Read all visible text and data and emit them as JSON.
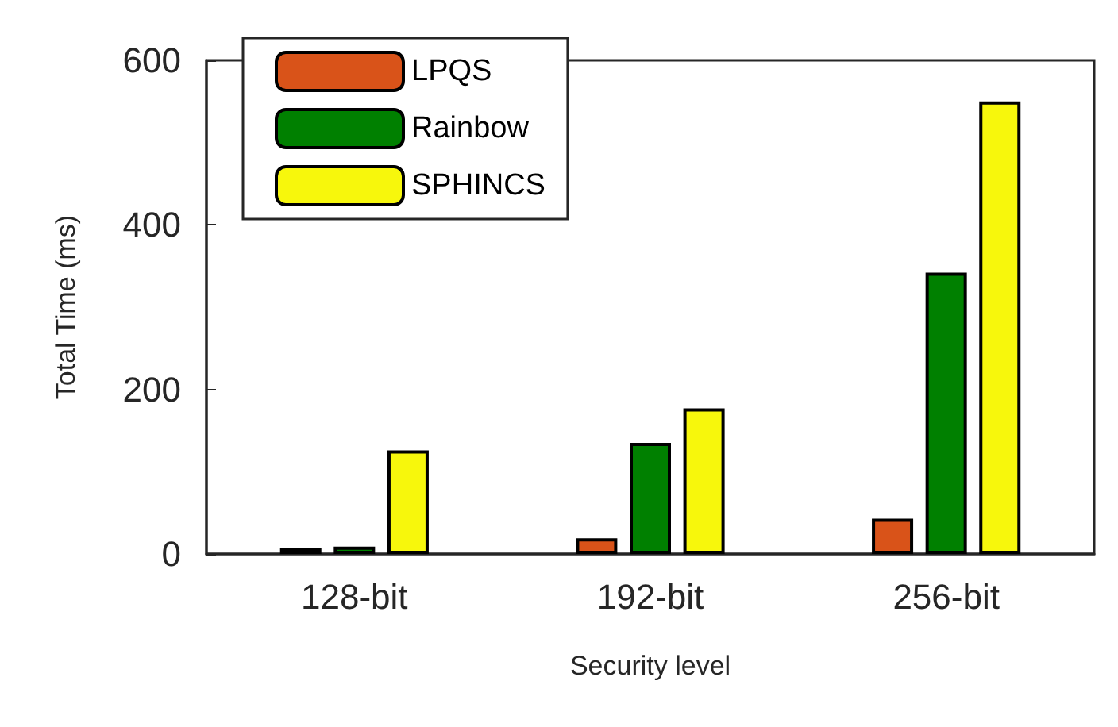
{
  "chart_data": {
    "type": "bar",
    "xlabel": "Security level",
    "ylabel": "Total Time (ms)",
    "categories": [
      "128-bit",
      "192-bit",
      "256-bit"
    ],
    "series": [
      {
        "name": "LPQS",
        "color": "#d95319",
        "values": [
          7,
          19,
          43
        ]
      },
      {
        "name": "Rainbow",
        "color": "#008000",
        "values": [
          9,
          135,
          342
        ]
      },
      {
        "name": "SPHINCS",
        "color": "#f7f70c",
        "values": [
          126,
          177,
          550
        ]
      }
    ],
    "ylim": [
      0,
      600
    ],
    "yticks": [
      0,
      200,
      400,
      600
    ],
    "grid": false,
    "legend": "top left"
  }
}
